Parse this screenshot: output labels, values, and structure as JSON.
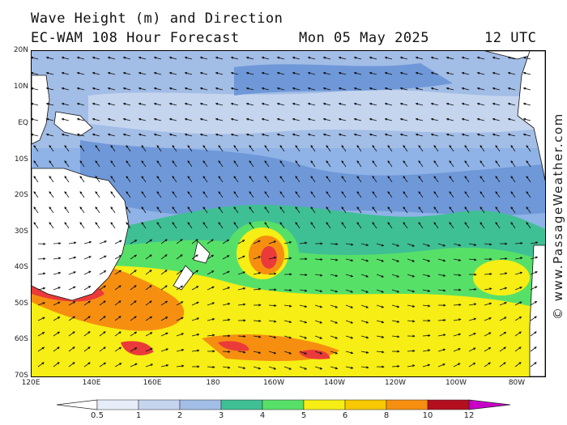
{
  "header": {
    "title": "Wave Height (m) and Direction",
    "model": "EC-WAM 108 Hour Forecast",
    "date": "Mon 05 May 2025",
    "time": "12 UTC"
  },
  "watermark": "© www.PassageWeather.com",
  "map": {
    "lat_labels": [
      "20N",
      "10N",
      "EQ",
      "10S",
      "20S",
      "30S",
      "40S",
      "50S",
      "60S",
      "70S"
    ],
    "lon_labels": [
      "120E",
      "140E",
      "160E",
      "180",
      "160W",
      "140W",
      "120W",
      "100W",
      "80W"
    ],
    "ocean_base_color": "#8fb3e6",
    "land_color": "#ffffff"
  },
  "legend": {
    "levels": [
      "0.5",
      "1",
      "2",
      "3",
      "4",
      "5",
      "6",
      "8",
      "10",
      "12"
    ],
    "colors": [
      "#e6edf8",
      "#c5d5ee",
      "#a2bde6",
      "#6f98d9",
      "#3fbf94",
      "#57e068",
      "#f6ee14",
      "#f8c800",
      "#f68f10",
      "#ea3a3a",
      "#b40f1f",
      "#c800c8"
    ]
  }
}
